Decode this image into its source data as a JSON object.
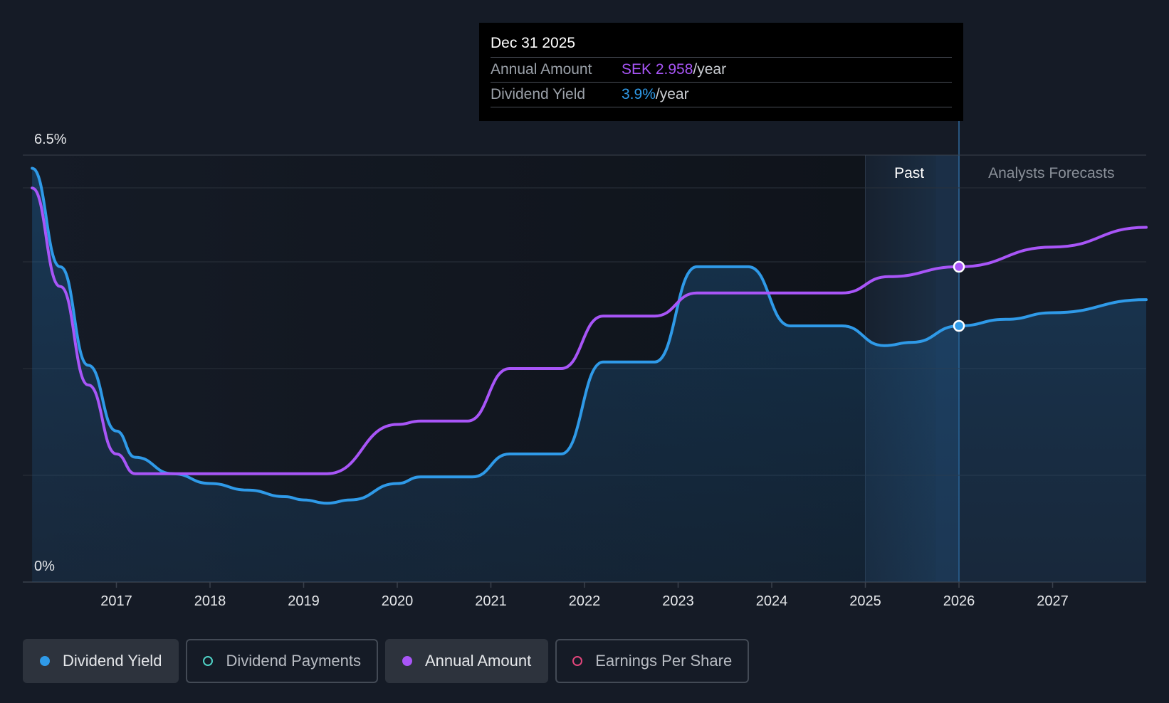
{
  "tooltip": {
    "date": "Dec 31 2025",
    "rows": [
      {
        "label": "Annual Amount",
        "value": "SEK 2.958",
        "unit": "/year",
        "color": "#a855f7"
      },
      {
        "label": "Dividend Yield",
        "value": "3.9%",
        "unit": "/year",
        "color": "#2f9ae8"
      }
    ]
  },
  "legend": [
    {
      "label": "Dividend Yield",
      "color": "#2f9ae8",
      "active": true,
      "filled": true
    },
    {
      "label": "Dividend Payments",
      "color": "#4fd1c5",
      "active": false,
      "filled": false
    },
    {
      "label": "Annual Amount",
      "color": "#a855f7",
      "active": true,
      "filled": true
    },
    {
      "label": "Earnings Per Share",
      "color": "#e0457b",
      "active": false,
      "filled": false
    }
  ],
  "chart_data": {
    "type": "line",
    "y_max_label": "6.5%",
    "y_min_label": "0%",
    "ylim": [
      0,
      6.5
    ],
    "xlim": [
      2016.0,
      2028.0
    ],
    "x_ticks": [
      "2017",
      "2018",
      "2019",
      "2020",
      "2021",
      "2022",
      "2023",
      "2024",
      "2025",
      "2026",
      "2027"
    ],
    "past_label": "Past",
    "forecast_label": "Analysts Forecasts",
    "forecast_start": 2025.0,
    "highlight_start": 2025.75,
    "cursor_x": 2026.0,
    "grid": true,
    "series": [
      {
        "name": "Dividend Yield",
        "color": "#2f9ae8",
        "points": [
          [
            2016.1,
            6.3
          ],
          [
            2016.4,
            4.8
          ],
          [
            2016.7,
            3.3
          ],
          [
            2017.0,
            2.3
          ],
          [
            2017.2,
            1.9
          ],
          [
            2017.6,
            1.65
          ],
          [
            2018.0,
            1.5
          ],
          [
            2018.4,
            1.4
          ],
          [
            2018.8,
            1.3
          ],
          [
            2019.0,
            1.25
          ],
          [
            2019.25,
            1.2
          ],
          [
            2019.5,
            1.25
          ],
          [
            2020.0,
            1.5
          ],
          [
            2020.25,
            1.6
          ],
          [
            2020.8,
            1.6
          ],
          [
            2021.2,
            1.95
          ],
          [
            2021.75,
            1.95
          ],
          [
            2022.2,
            3.35
          ],
          [
            2022.75,
            3.35
          ],
          [
            2023.2,
            4.8
          ],
          [
            2023.75,
            4.8
          ],
          [
            2024.2,
            3.9
          ],
          [
            2024.75,
            3.9
          ],
          [
            2025.2,
            3.6
          ],
          [
            2025.5,
            3.65
          ],
          [
            2026.0,
            3.9
          ],
          [
            2026.5,
            4.0
          ],
          [
            2027.0,
            4.1
          ],
          [
            2028.0,
            4.3
          ]
        ]
      },
      {
        "name": "Annual Amount",
        "color": "#a855f7",
        "points": [
          [
            2016.1,
            6.0
          ],
          [
            2016.4,
            4.5
          ],
          [
            2016.7,
            3.0
          ],
          [
            2017.0,
            1.95
          ],
          [
            2017.2,
            1.65
          ],
          [
            2017.6,
            1.65
          ],
          [
            2018.5,
            1.65
          ],
          [
            2019.25,
            1.65
          ],
          [
            2020.0,
            2.4
          ],
          [
            2020.25,
            2.45
          ],
          [
            2020.75,
            2.45
          ],
          [
            2021.2,
            3.25
          ],
          [
            2021.75,
            3.25
          ],
          [
            2022.2,
            4.05
          ],
          [
            2022.75,
            4.05
          ],
          [
            2023.2,
            4.4
          ],
          [
            2023.75,
            4.4
          ],
          [
            2024.75,
            4.4
          ],
          [
            2025.25,
            4.65
          ],
          [
            2026.0,
            4.8
          ],
          [
            2027.0,
            5.1
          ],
          [
            2028.0,
            5.4
          ]
        ]
      }
    ]
  }
}
